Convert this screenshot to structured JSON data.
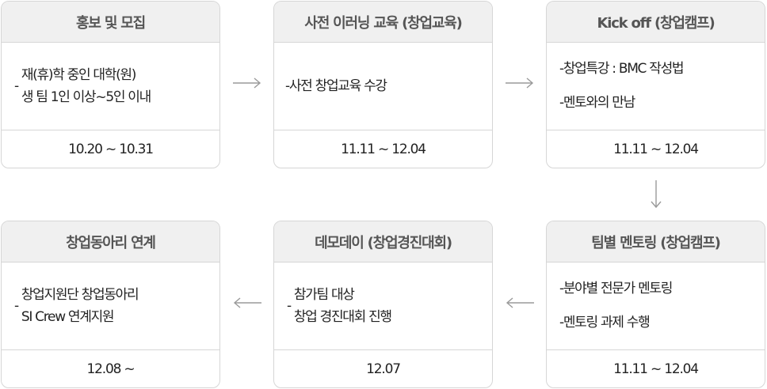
{
  "steps": [
    {
      "title": "홍보 및 모집",
      "dash": "-",
      "lines": [
        "재(휴)학 중인 대학(원)",
        "생 팀 1인 이상~5인 이내"
      ],
      "date": "10.20 ~ 10.31"
    },
    {
      "title": "사전 이러닝 교육 (창업교육)",
      "lines": [
        "-사전 창업교육 수강"
      ],
      "date": "11.11 ~ 12.04"
    },
    {
      "title": "Kick off (창업캠프)",
      "lines": [
        "-창업특강 : BMC 작성법",
        "-멘토와의 만남"
      ],
      "date": "11.11 ~ 12.04"
    },
    {
      "title": "팀별 멘토링 (창업캠프)",
      "lines": [
        "-분야별 전문가 멘토링",
        "-멘토링 과제 수행"
      ],
      "date": "11.11 ~ 12.04"
    },
    {
      "title": "데모데이 (창업경진대회)",
      "dash": "-",
      "lines": [
        "참가팀 대상",
        "창업 경진대회 진행"
      ],
      "date": "12.07"
    },
    {
      "title": "창업동아리 연계",
      "dash": "-",
      "lines": [
        "창업지원단 창업동아리",
        "SI Crew 연계지원"
      ],
      "date": "12.08 ~"
    }
  ]
}
